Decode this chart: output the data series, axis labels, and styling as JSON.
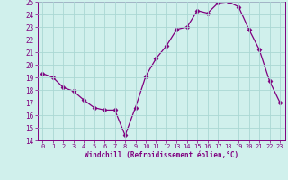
{
  "x": [
    0,
    1,
    2,
    3,
    4,
    5,
    6,
    7,
    8,
    9,
    10,
    11,
    12,
    13,
    14,
    15,
    16,
    17,
    18,
    19,
    20,
    21,
    22,
    23
  ],
  "y": [
    19.3,
    19.0,
    18.2,
    17.9,
    17.2,
    16.6,
    16.4,
    16.4,
    14.4,
    16.6,
    19.1,
    20.5,
    21.5,
    22.8,
    23.0,
    24.3,
    24.1,
    24.9,
    25.0,
    24.6,
    22.8,
    21.2,
    18.7,
    17.0
  ],
  "line_color": "#800080",
  "marker": "D",
  "marker_size": 2.5,
  "bg_color": "#d0f0ec",
  "grid_color": "#aad8d4",
  "xlabel": "Windchill (Refroidissement éolien,°C)",
  "xlabel_color": "#800080",
  "tick_color": "#800080",
  "ylim": [
    14,
    25
  ],
  "xlim": [
    -0.5,
    23.5
  ],
  "yticks": [
    14,
    15,
    16,
    17,
    18,
    19,
    20,
    21,
    22,
    23,
    24,
    25
  ],
  "xticks": [
    0,
    1,
    2,
    3,
    4,
    5,
    6,
    7,
    8,
    9,
    10,
    11,
    12,
    13,
    14,
    15,
    16,
    17,
    18,
    19,
    20,
    21,
    22,
    23
  ]
}
